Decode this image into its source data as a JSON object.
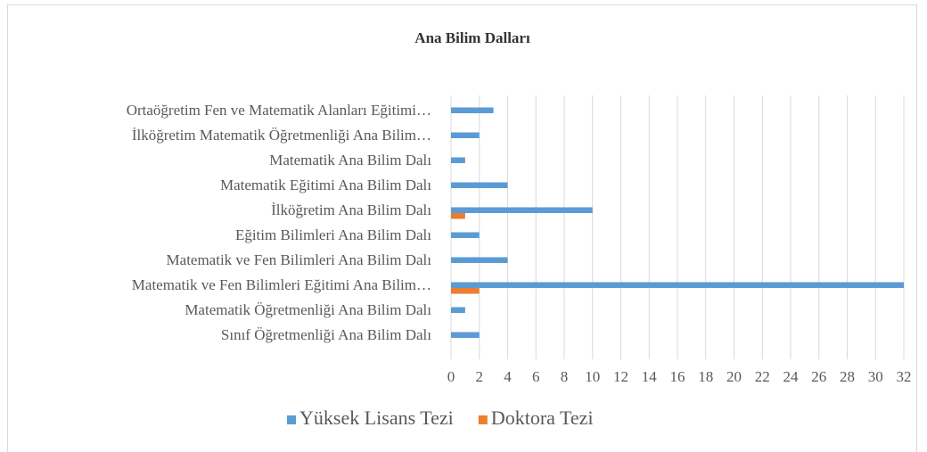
{
  "chart_data": {
    "type": "bar",
    "orientation": "horizontal",
    "title": "Ana Bilim Dalları",
    "categories": [
      "Ortaöğretim Fen ve Matematik Alanları Eğitimi…",
      "İlköğretim Matematik Öğretmenliği Ana Bilim…",
      "Matematik Ana Bilim Dalı",
      "Matematik Eğitimi Ana Bilim Dalı",
      "İlköğretim Ana Bilim Dalı",
      "Eğitim Bilimleri Ana Bilim Dalı",
      "Matematik ve Fen Bilimleri Ana Bilim Dalı",
      "Matematik ve Fen Bilimleri Eğitimi Ana Bilim…",
      "Matematik Öğretmenliği Ana Bilim Dalı",
      "Sınıf Öğretmenliği Ana Bilim Dalı"
    ],
    "series": [
      {
        "name": "Yüksek Lisans Tezi",
        "color": "#5b9bd5",
        "values": [
          3,
          2,
          1,
          4,
          10,
          2,
          4,
          32,
          1,
          2
        ]
      },
      {
        "name": "Doktora Tezi",
        "color": "#ed7d31",
        "values": [
          0,
          0,
          0,
          0,
          1,
          0,
          0,
          2,
          0,
          0
        ]
      }
    ],
    "xlim": [
      0,
      32
    ],
    "xticks": [
      0,
      2,
      4,
      6,
      8,
      10,
      12,
      14,
      16,
      18,
      20,
      22,
      24,
      26,
      28,
      30,
      32
    ],
    "grid": true,
    "legend": "bottom"
  }
}
